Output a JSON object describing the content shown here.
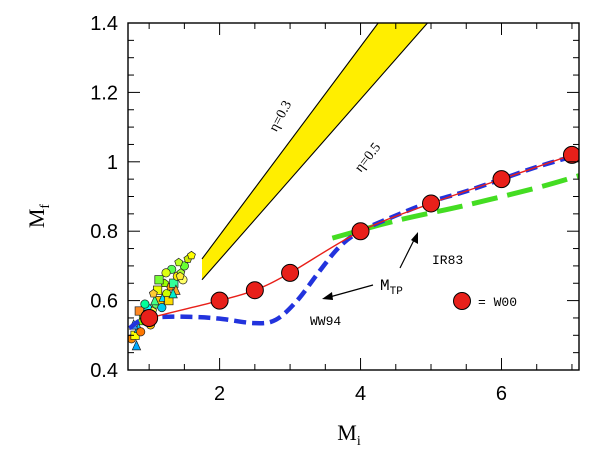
{
  "chart_data": {
    "type": "scatter",
    "title": "",
    "xlabel": "M",
    "xlabel_sub": "i",
    "ylabel": "M",
    "ylabel_sub": "f",
    "xlim": [
      0.7,
      7.1
    ],
    "ylim": [
      0.4,
      1.4
    ],
    "xticks": [
      2,
      4,
      6
    ],
    "xtick_labels": [
      "2",
      "4",
      "6"
    ],
    "yticks": [
      0.4,
      0.6,
      0.8,
      1.0,
      1.2,
      1.4
    ],
    "ytick_labels": [
      "0.4",
      "0.6",
      "0.8",
      "1",
      "1.2",
      "1.4"
    ],
    "grid": false,
    "legend": [
      {
        "label": "= W00",
        "marker": "red-circle",
        "placement": "bottom-right"
      }
    ],
    "annotations": {
      "eta_03": "η=0.3",
      "eta_05": "η=0.5",
      "mtp_main": "M",
      "mtp_sub": "TP",
      "ww94": "WW94",
      "ir83": "IR83"
    },
    "colors": {
      "w00_fill": "#e8201a",
      "w00_line": "#e8201a",
      "ww94": "#2233dd",
      "ir83": "#44dd22",
      "band": "#ffee00"
    },
    "series": [
      {
        "name": "W00",
        "kind": "markers+line",
        "x": [
          1.0,
          2.0,
          2.5,
          3.0,
          4.0,
          5.0,
          6.0,
          7.0
        ],
        "y": [
          0.55,
          0.6,
          0.63,
          0.68,
          0.8,
          0.88,
          0.95,
          1.02
        ]
      },
      {
        "name": "WW94",
        "kind": "dashed-line",
        "x": [
          0.72,
          0.9,
          1.2,
          1.6,
          2.0,
          2.5,
          2.8,
          3.1,
          3.4,
          3.7,
          4.0,
          4.5,
          5.0,
          5.5,
          6.0,
          6.5,
          7.0
        ],
        "y": [
          0.52,
          0.545,
          0.553,
          0.553,
          0.548,
          0.535,
          0.545,
          0.6,
          0.68,
          0.755,
          0.8,
          0.845,
          0.885,
          0.915,
          0.95,
          0.985,
          1.015
        ]
      },
      {
        "name": "IR83",
        "kind": "dashed-line",
        "x": [
          3.6,
          4.5,
          5.5,
          6.5,
          7.1
        ],
        "y": [
          0.78,
          0.83,
          0.875,
          0.925,
          0.96
        ]
      }
    ],
    "band": {
      "lower": [
        [
          1.75,
          0.66
        ],
        [
          4.95,
          1.4
        ]
      ],
      "upper": [
        [
          1.75,
          0.72
        ],
        [
          4.25,
          1.4
        ]
      ]
    },
    "observations": {
      "x": [
        0.75,
        0.8,
        0.85,
        0.9,
        0.95,
        1.0,
        1.05,
        1.1,
        1.15,
        1.2,
        1.25,
        1.3,
        1.35,
        1.4,
        1.45,
        1.5,
        1.55,
        1.6,
        0.82,
        0.88,
        0.92,
        0.98,
        1.02,
        1.08,
        1.12,
        1.18,
        1.22,
        1.28,
        1.32,
        1.38,
        1.42,
        1.48,
        0.78,
        0.86,
        0.94,
        1.06,
        1.14,
        1.24,
        1.34,
        1.44
      ],
      "y": [
        0.49,
        0.5,
        0.52,
        0.54,
        0.55,
        0.56,
        0.57,
        0.59,
        0.6,
        0.61,
        0.62,
        0.64,
        0.65,
        0.67,
        0.68,
        0.7,
        0.72,
        0.73,
        0.47,
        0.51,
        0.56,
        0.58,
        0.53,
        0.6,
        0.63,
        0.58,
        0.65,
        0.6,
        0.69,
        0.63,
        0.71,
        0.66,
        0.53,
        0.57,
        0.59,
        0.62,
        0.66,
        0.68,
        0.62,
        0.67
      ],
      "colors": [
        "#ff8800",
        "#ffff00",
        "#00ccff",
        "#88ff00",
        "#ffaa00",
        "#00ffcc",
        "#ffff44",
        "#66ff66",
        "#ffcc00",
        "#00ddff",
        "#ccff00",
        "#ff9900",
        "#33ff99",
        "#ffee00",
        "#aaff33",
        "#66ff33",
        "#ccee00",
        "#ffff00",
        "#00aaff",
        "#ff7700",
        "#88ff44",
        "#00ffff",
        "#ffbb00",
        "#44ff88",
        "#eeff00",
        "#00ccee",
        "#99ff00",
        "#ffdd00",
        "#55ff55",
        "#ffaa22",
        "#bbff22",
        "#ffff66",
        "#3399ff",
        "#ff8822",
        "#00ff99",
        "#ffcc33",
        "#77ff33",
        "#ddff11",
        "#00eecc",
        "#ffee33"
      ],
      "shapes": [
        "circle",
        "square",
        "triangle",
        "pentagon",
        "circle",
        "square",
        "pentagon",
        "circle",
        "square",
        "triangle",
        "circle",
        "pentagon",
        "square",
        "circle",
        "pentagon",
        "circle",
        "pentagon",
        "pentagon",
        "triangle",
        "circle",
        "square",
        "pentagon",
        "circle",
        "triangle",
        "square",
        "circle",
        "pentagon",
        "square",
        "circle",
        "triangle",
        "pentagon",
        "circle",
        "triangle",
        "square",
        "circle",
        "pentagon",
        "square",
        "circle",
        "triangle",
        "pentagon"
      ]
    }
  }
}
